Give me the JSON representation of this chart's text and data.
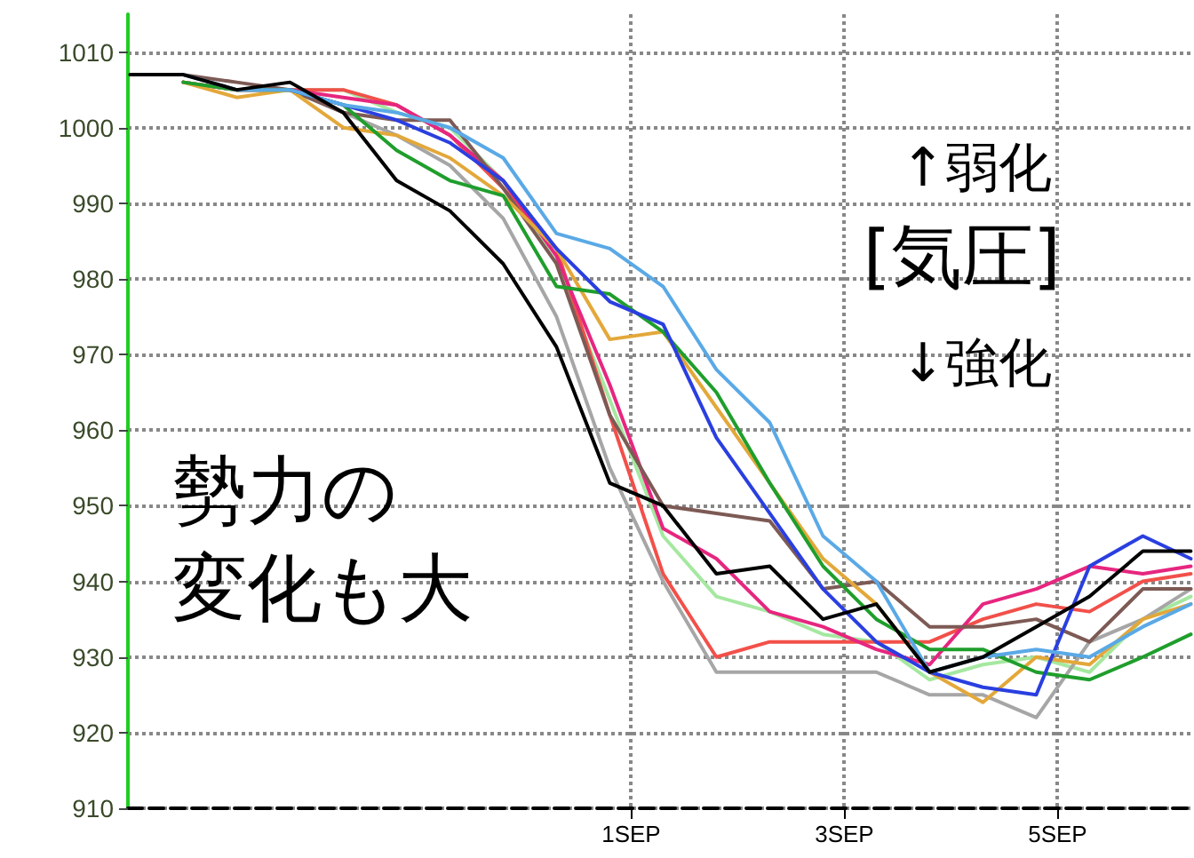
{
  "chart_data": {
    "type": "line",
    "x": [
      "--08-27T07:12",
      "--08-27T19:12",
      "--08-28T07:12",
      "--08-28T19:12",
      "--08-29T07:12",
      "--08-29T19:12",
      "--08-30T07:12",
      "--08-30T19:12",
      "--08-31T07:12",
      "--08-31T19:12",
      "--09-01T07:12",
      "--09-01T19:12",
      "--09-02T07:12",
      "--09-02T19:12",
      "--09-03T07:12",
      "--09-03T19:12",
      "--09-04T07:12",
      "--09-04T19:12",
      "--09-05T07:12",
      "--09-05T19:12",
      "--09-06T06:00"
    ],
    "series": [
      {
        "color": "#000000",
        "values": [
          1007,
          1007,
          1005,
          1006,
          1002,
          993,
          989,
          982,
          971,
          953,
          950,
          941,
          942,
          935,
          937,
          928,
          930,
          934,
          938,
          944,
          944
        ]
      },
      {
        "color": "#5aa9e6",
        "values": [
          null,
          1007,
          1005,
          1005,
          1003,
          1002,
          1000,
          996,
          986,
          984,
          979,
          968,
          961,
          946,
          940,
          928,
          930,
          931,
          930,
          934,
          937
        ]
      },
      {
        "color": "#2a3fe0",
        "values": [
          null,
          null,
          null,
          1005,
          1003,
          1001,
          998,
          993,
          984,
          977,
          974,
          959,
          949,
          939,
          932,
          928,
          926,
          925,
          942,
          946,
          943
        ]
      },
      {
        "color": "#1f9e2c",
        "values": [
          null,
          1006,
          1005,
          1005,
          1003,
          997,
          993,
          991,
          979,
          978,
          973,
          965,
          953,
          942,
          935,
          931,
          931,
          928,
          927,
          930,
          933
        ]
      },
      {
        "color": "#e3a83a",
        "values": [
          null,
          1006,
          1004,
          1005,
          1000,
          999,
          996,
          991,
          984,
          972,
          973,
          963,
          953,
          943,
          937,
          928,
          924,
          930,
          929,
          935,
          937
        ]
      },
      {
        "color": "#7d5a55",
        "values": [
          null,
          1007,
          1006,
          1005,
          1002,
          1001,
          1001,
          992,
          982,
          962,
          950,
          949,
          948,
          939,
          940,
          934,
          934,
          935,
          932,
          939,
          939
        ]
      },
      {
        "color": "#a6a6a6",
        "values": [
          null,
          1006,
          1005,
          1005,
          1002,
          999,
          995,
          988,
          975,
          955,
          940,
          928,
          928,
          928,
          928,
          925,
          925,
          922,
          932,
          935,
          939
        ]
      },
      {
        "color": "#e6267f",
        "values": [
          null,
          1006,
          1005,
          1005,
          1004,
          1003,
          999,
          993,
          983,
          966,
          947,
          943,
          936,
          934,
          931,
          929,
          937,
          939,
          942,
          941,
          942
        ]
      },
      {
        "color": "#f2504a",
        "values": [
          null,
          1006,
          1005,
          1005,
          1005,
          1003,
          999,
          992,
          984,
          962,
          941,
          930,
          932,
          932,
          932,
          932,
          935,
          937,
          936,
          940,
          941
        ]
      },
      {
        "color": "#a5e8a0",
        "values": [
          null,
          1006,
          1005,
          1005,
          1005,
          1002,
          1000,
          993,
          982,
          964,
          946,
          938,
          936,
          933,
          932,
          927,
          929,
          930,
          928,
          935,
          938
        ]
      }
    ],
    "xlim": [
      "--08-27T06:43",
      "--09-06T06:43"
    ],
    "xticks": [
      {
        "value": "--09-01",
        "label": "1SEP"
      },
      {
        "value": "--09-03",
        "label": "3SEP"
      },
      {
        "value": "--09-05",
        "label": "5SEP"
      }
    ],
    "ylim": [
      910,
      1015
    ],
    "yticks": [
      910,
      920,
      930,
      940,
      950,
      960,
      970,
      980,
      990,
      1000,
      1010
    ],
    "grid": true,
    "marker": "none",
    "line_style": "solid",
    "annotations": [
      "↑弱化",
      "[気圧]",
      "↓強化",
      "勢力の",
      "変化も大"
    ]
  }
}
